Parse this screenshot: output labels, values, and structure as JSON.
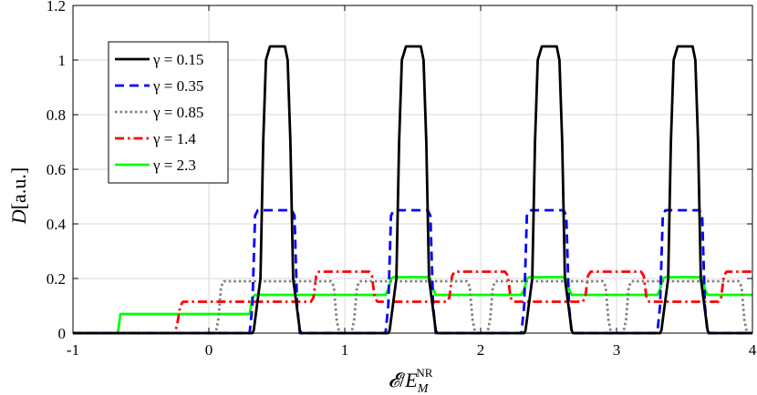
{
  "chart_data": {
    "type": "line",
    "title": "",
    "xlabel": "𝓔/E_M^NR",
    "xlabel_parts": {
      "script_e": "𝓔",
      "slash": "/",
      "e": "E",
      "sub": "M",
      "sup": "NR"
    },
    "ylabel": "D[a.u.]",
    "ylabel_parts": {
      "symbol": "D",
      "units": "[a.u.]"
    },
    "xlim": [
      -1,
      4
    ],
    "ylim": [
      0,
      1.2
    ],
    "xticks": [
      -1,
      0,
      1,
      2,
      3,
      4
    ],
    "xtick_labels": [
      "-1",
      "0",
      "1",
      "2",
      "3",
      "4"
    ],
    "yticks": [
      0,
      0.2,
      0.4,
      0.6,
      0.8,
      1,
      1.2
    ],
    "ytick_labels": [
      "0",
      "0.2",
      "0.4",
      "0.6",
      "0.8",
      "1",
      "1.2"
    ],
    "grid": true,
    "legend_position": "top-left",
    "series": [
      {
        "name": "γ = 0.15",
        "color": "#000000",
        "dash": "solid",
        "x": [
          -1,
          0.32,
          0.33,
          0.38,
          0.4,
          0.42,
          0.45,
          0.56,
          0.58,
          0.6,
          0.62,
          0.67,
          0.68,
          1.32,
          1.33,
          1.38,
          1.4,
          1.42,
          1.45,
          1.56,
          1.58,
          1.6,
          1.62,
          1.67,
          1.68,
          2.32,
          2.33,
          2.38,
          2.4,
          2.42,
          2.45,
          2.56,
          2.58,
          2.6,
          2.62,
          2.67,
          2.68,
          3.32,
          3.33,
          3.38,
          3.4,
          3.42,
          3.45,
          3.56,
          3.58,
          3.6,
          3.62,
          3.67,
          3.68,
          4
        ],
        "y": [
          0,
          0,
          0.01,
          0.2,
          0.7,
          1.0,
          1.05,
          1.05,
          1.0,
          0.7,
          0.2,
          0.01,
          0,
          0,
          0.01,
          0.2,
          0.7,
          1.0,
          1.05,
          1.05,
          1.0,
          0.7,
          0.2,
          0.01,
          0,
          0,
          0.01,
          0.2,
          0.7,
          1.0,
          1.05,
          1.05,
          1.0,
          0.7,
          0.2,
          0.01,
          0,
          0,
          0.01,
          0.2,
          0.7,
          1.0,
          1.05,
          1.05,
          1.0,
          0.7,
          0.2,
          0.01,
          0,
          0
        ]
      },
      {
        "name": "γ = 0.35",
        "color": "#0000ff",
        "dash": "dashed",
        "x": [
          -1,
          0.3,
          0.32,
          0.34,
          0.36,
          0.61,
          0.63,
          0.65,
          0.67,
          1.3,
          1.32,
          1.34,
          1.36,
          1.61,
          1.63,
          1.65,
          1.67,
          2.3,
          2.32,
          2.34,
          2.36,
          2.61,
          2.63,
          2.65,
          2.67,
          3.3,
          3.32,
          3.34,
          3.36,
          3.61,
          3.63,
          3.65,
          3.67,
          4
        ],
        "y": [
          0,
          0,
          0.1,
          0.43,
          0.45,
          0.45,
          0.43,
          0.1,
          0,
          0,
          0.1,
          0.43,
          0.45,
          0.45,
          0.43,
          0.1,
          0,
          0,
          0.1,
          0.43,
          0.45,
          0.45,
          0.43,
          0.1,
          0,
          0,
          0.1,
          0.43,
          0.45,
          0.45,
          0.43,
          0.1,
          0,
          0
        ]
      },
      {
        "name": "γ = 0.85",
        "color": "#808080",
        "dash": "dotted",
        "x": [
          -1,
          0.05,
          0.07,
          0.09,
          0.11,
          0.9,
          0.92,
          0.94,
          0.96,
          1.05,
          1.07,
          1.09,
          1.11,
          1.9,
          1.92,
          1.94,
          1.96,
          2.05,
          2.07,
          2.09,
          2.11,
          2.9,
          2.92,
          2.94,
          2.96,
          3.05,
          3.07,
          3.09,
          3.11,
          3.9,
          3.92,
          3.94,
          3.96,
          4
        ],
        "y": [
          0,
          0,
          0.05,
          0.17,
          0.19,
          0.19,
          0.17,
          0.05,
          0,
          0,
          0.05,
          0.17,
          0.19,
          0.19,
          0.17,
          0.05,
          0,
          0,
          0.05,
          0.17,
          0.19,
          0.19,
          0.17,
          0.05,
          0,
          0,
          0.05,
          0.17,
          0.19,
          0.19,
          0.17,
          0.05,
          0,
          0
        ]
      },
      {
        "name": "γ = 1.4",
        "color": "#ff0000",
        "dash": "dashdot",
        "x": [
          -1,
          -0.25,
          -0.23,
          -0.21,
          -0.19,
          0.75,
          0.77,
          0.79,
          0.81,
          1.18,
          1.2,
          1.22,
          1.24,
          1.75,
          1.77,
          1.79,
          1.81,
          2.18,
          2.2,
          2.22,
          2.24,
          2.75,
          2.77,
          2.79,
          2.81,
          3.18,
          3.2,
          3.22,
          3.24,
          3.75,
          3.77,
          3.79,
          3.81,
          4
        ],
        "y": [
          0,
          0,
          0.04,
          0.1,
          0.115,
          0.115,
          0.13,
          0.21,
          0.225,
          0.225,
          0.21,
          0.13,
          0.115,
          0.115,
          0.13,
          0.21,
          0.225,
          0.225,
          0.21,
          0.13,
          0.115,
          0.115,
          0.13,
          0.21,
          0.225,
          0.225,
          0.21,
          0.13,
          0.115,
          0.115,
          0.13,
          0.21,
          0.225,
          0.225
        ]
      },
      {
        "name": "γ = 2.3",
        "color": "#00ff00",
        "dash": "solid",
        "x": [
          -1,
          -0.67,
          -0.65,
          0.3,
          0.32,
          0.34,
          1.3,
          1.32,
          1.34,
          1.36,
          1.61,
          1.63,
          1.65,
          1.67,
          2.3,
          2.32,
          2.34,
          2.36,
          2.61,
          2.63,
          2.65,
          2.67,
          3.3,
          3.32,
          3.34,
          3.36,
          3.61,
          3.63,
          3.65,
          3.67,
          4
        ],
        "y": [
          0,
          0,
          0.07,
          0.07,
          0.13,
          0.14,
          0.14,
          0.16,
          0.2,
          0.205,
          0.205,
          0.2,
          0.16,
          0.14,
          0.14,
          0.16,
          0.2,
          0.205,
          0.205,
          0.2,
          0.16,
          0.14,
          0.14,
          0.16,
          0.2,
          0.205,
          0.205,
          0.2,
          0.16,
          0.14,
          0.14
        ]
      }
    ]
  }
}
